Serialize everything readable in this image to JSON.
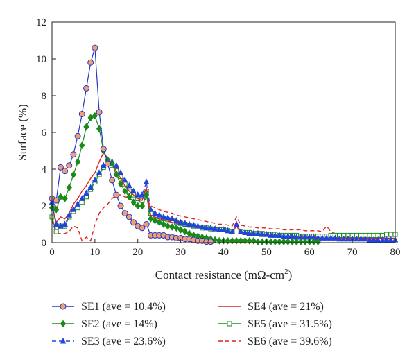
{
  "chart_data": {
    "type": "line",
    "xlabel": "Contact resistance (mΩ-cm",
    "xlabel_sup": "2",
    "xlabel_suffix": ")",
    "ylabel": "Surface (%)",
    "xlim": [
      0,
      80
    ],
    "ylim": [
      0,
      12
    ],
    "x_ticks": [
      0,
      10,
      20,
      30,
      40,
      50,
      60,
      70,
      80
    ],
    "y_ticks": [
      0,
      2,
      4,
      6,
      8,
      10,
      12
    ],
    "grid": false,
    "legend_position": "bottom",
    "series": [
      {
        "name": "SE1 (ave = 10.4%)",
        "color": "#2233cc",
        "marker": "circle",
        "marker_fill": "#f0a070",
        "dashed": false,
        "x": [
          0,
          1,
          2,
          3,
          4,
          5,
          6,
          7,
          8,
          9,
          10,
          11,
          12,
          13,
          14,
          15,
          16,
          17,
          18,
          19,
          20,
          21,
          22,
          23,
          24,
          25,
          26,
          27,
          28,
          29,
          30,
          31,
          32,
          33,
          34,
          35,
          36,
          37
        ],
        "y": [
          2.4,
          2.3,
          4.1,
          3.9,
          4.2,
          4.8,
          5.8,
          7.0,
          8.4,
          9.8,
          10.6,
          7.1,
          5.1,
          4.3,
          3.4,
          2.6,
          2.0,
          1.6,
          1.4,
          1.1,
          0.9,
          0.8,
          1.0,
          0.4,
          0.4,
          0.4,
          0.4,
          0.3,
          0.3,
          0.25,
          0.25,
          0.2,
          0.2,
          0.15,
          0.1,
          0.1,
          0.05,
          0.05
        ]
      },
      {
        "name": "SE2 (ave = 14%)",
        "color": "#1a8a1a",
        "marker": "diamond",
        "marker_fill": "#1a8a1a",
        "dashed": false,
        "x": [
          0,
          1,
          2,
          3,
          4,
          5,
          6,
          7,
          8,
          9,
          10,
          11,
          12,
          13,
          14,
          15,
          16,
          17,
          18,
          19,
          20,
          21,
          22,
          23,
          24,
          25,
          26,
          27,
          28,
          29,
          30,
          31,
          32,
          33,
          34,
          35,
          36,
          37,
          38,
          39,
          40,
          41,
          42,
          43,
          44,
          45,
          46,
          47,
          48,
          49,
          50,
          51,
          52,
          53,
          54,
          55,
          56,
          57,
          58,
          59,
          60,
          61,
          62
        ],
        "y": [
          1.9,
          1.8,
          2.5,
          2.4,
          3.0,
          3.7,
          4.4,
          5.3,
          6.3,
          6.8,
          6.9,
          6.2,
          5.0,
          4.5,
          4.3,
          3.7,
          3.2,
          2.8,
          2.5,
          2.2,
          2.0,
          2.0,
          2.6,
          1.3,
          1.2,
          1.1,
          1.0,
          0.9,
          0.85,
          0.8,
          0.7,
          0.6,
          0.5,
          0.4,
          0.35,
          0.3,
          0.25,
          0.2,
          0.15,
          0.1,
          0.1,
          0.1,
          0.1,
          0.1,
          0.1,
          0.1,
          0.1,
          0.1,
          0.05,
          0.05,
          0.05,
          0.05,
          0.05,
          0.05,
          0.05,
          0.05,
          0.05,
          0.05,
          0.05,
          0.05,
          0.05,
          0.05,
          0.05
        ]
      },
      {
        "name": "SE3 (ave = 23.6%)",
        "color": "#2244dd",
        "marker": "triangle",
        "marker_fill": "#2244dd",
        "dashed": true,
        "x": [
          0,
          1,
          2,
          3,
          4,
          5,
          6,
          7,
          8,
          9,
          10,
          11,
          12,
          13,
          14,
          15,
          16,
          17,
          18,
          19,
          20,
          21,
          22,
          23,
          24,
          25,
          26,
          27,
          28,
          29,
          30,
          31,
          32,
          33,
          34,
          35,
          36,
          37,
          38,
          39,
          40,
          41,
          42,
          43,
          44,
          45,
          46,
          47,
          48,
          49,
          50,
          51,
          52,
          53,
          54,
          55,
          56,
          57,
          58,
          59,
          60,
          61,
          62,
          63,
          64,
          65,
          66,
          67,
          68,
          69,
          70,
          71,
          72,
          73,
          74,
          75,
          76,
          77,
          78,
          79,
          80
        ],
        "y": [
          2.2,
          1.0,
          0.9,
          1.0,
          1.5,
          1.8,
          2.1,
          2.4,
          2.7,
          3.0,
          3.4,
          3.8,
          4.2,
          4.3,
          4.4,
          4.2,
          3.8,
          3.4,
          3.1,
          2.8,
          2.6,
          2.6,
          3.3,
          1.8,
          1.6,
          1.5,
          1.4,
          1.35,
          1.3,
          1.2,
          1.1,
          1.05,
          1.0,
          0.95,
          0.9,
          0.85,
          0.8,
          0.8,
          0.75,
          0.7,
          0.7,
          0.65,
          0.6,
          1.0,
          0.6,
          0.55,
          0.5,
          0.5,
          0.5,
          0.45,
          0.45,
          0.4,
          0.4,
          0.4,
          0.35,
          0.35,
          0.35,
          0.3,
          0.3,
          0.3,
          0.3,
          0.3,
          0.25,
          0.25,
          0.25,
          0.25,
          0.25,
          0.2,
          0.2,
          0.2,
          0.2,
          0.2,
          0.2,
          0.2,
          0.15,
          0.15,
          0.15,
          0.15,
          0.15,
          0.15,
          0.15
        ]
      },
      {
        "name": "SE4 (ave = 21%)",
        "color": "#dd2222",
        "marker": "none",
        "marker_fill": "none",
        "dashed": false,
        "x": [
          0,
          1,
          2,
          3,
          4,
          5,
          6,
          7,
          8,
          9,
          10,
          11,
          12,
          13,
          14,
          15,
          16,
          17,
          18,
          19,
          20,
          21,
          22,
          23,
          24,
          25,
          26,
          27,
          28,
          29,
          30,
          31,
          32,
          33,
          34,
          35,
          36,
          37,
          38,
          39,
          40,
          41,
          42,
          43,
          44,
          45,
          46,
          47,
          48,
          49,
          50,
          51,
          52,
          53,
          54,
          55,
          56,
          57,
          58,
          59,
          60,
          61,
          62,
          63,
          64,
          65,
          66,
          67,
          68,
          69,
          70,
          71,
          72,
          73,
          74,
          75,
          76,
          77,
          78,
          79,
          80
        ],
        "y": [
          2.0,
          1.1,
          1.4,
          1.3,
          1.6,
          2.1,
          2.4,
          2.8,
          3.1,
          3.5,
          3.8,
          4.4,
          4.9,
          4.6,
          4.3,
          3.9,
          3.5,
          3.1,
          2.8,
          2.6,
          2.4,
          2.3,
          3.0,
          1.5,
          1.4,
          1.3,
          1.25,
          1.2,
          1.1,
          1.05,
          1.0,
          0.95,
          0.9,
          0.85,
          0.8,
          0.8,
          0.75,
          0.7,
          0.7,
          0.65,
          0.6,
          0.6,
          0.55,
          0.9,
          0.55,
          0.5,
          0.5,
          0.45,
          0.45,
          0.45,
          0.4,
          0.4,
          0.4,
          0.35,
          0.35,
          0.35,
          0.35,
          0.3,
          0.3,
          0.3,
          0.3,
          0.3,
          0.3,
          0.25,
          0.25,
          0.25,
          0.25,
          0.25,
          0.25,
          0.25,
          0.25,
          0.25,
          0.25,
          0.25,
          0.25,
          0.25,
          0.25,
          0.25,
          0.25,
          0.25,
          0.25
        ]
      },
      {
        "name": "SE5 (ave = 31.5%)",
        "color": "#1a8a1a",
        "marker": "square",
        "marker_fill": "#ffffff",
        "dashed": false,
        "x": [
          0,
          1,
          2,
          3,
          4,
          5,
          6,
          7,
          8,
          9,
          10,
          11,
          12,
          13,
          14,
          15,
          16,
          17,
          18,
          19,
          20,
          21,
          22,
          23,
          24,
          25,
          26,
          27,
          28,
          29,
          30,
          31,
          32,
          33,
          34,
          35,
          36,
          37,
          38,
          39,
          40,
          41,
          42,
          43,
          44,
          45,
          46,
          47,
          48,
          49,
          50,
          51,
          52,
          53,
          54,
          55,
          56,
          57,
          58,
          59,
          60,
          61,
          62,
          63,
          64,
          65,
          66,
          67,
          68,
          69,
          70,
          71,
          72,
          73,
          74,
          75,
          76,
          77,
          78,
          79,
          80
        ],
        "y": [
          1.4,
          0.6,
          0.9,
          0.9,
          1.4,
          1.7,
          1.9,
          2.2,
          2.5,
          2.9,
          3.3,
          3.7,
          4.1,
          4.3,
          4.2,
          3.9,
          3.6,
          3.2,
          2.8,
          2.6,
          2.4,
          2.3,
          2.8,
          1.6,
          1.5,
          1.4,
          1.3,
          1.25,
          1.2,
          1.1,
          1.05,
          1.0,
          0.95,
          0.9,
          0.85,
          0.8,
          0.8,
          0.75,
          0.7,
          0.7,
          0.7,
          0.65,
          0.6,
          0.85,
          0.6,
          0.55,
          0.55,
          0.5,
          0.5,
          0.5,
          0.45,
          0.45,
          0.45,
          0.4,
          0.4,
          0.4,
          0.4,
          0.4,
          0.35,
          0.35,
          0.35,
          0.35,
          0.35,
          0.35,
          0.35,
          0.4,
          0.4,
          0.4,
          0.4,
          0.4,
          0.4,
          0.4,
          0.4,
          0.4,
          0.4,
          0.4,
          0.4,
          0.4,
          0.45,
          0.45,
          0.45
        ]
      },
      {
        "name": "SE6 (ave = 39.6%)",
        "color": "#dd2222",
        "marker": "none",
        "marker_fill": "none",
        "dashed": true,
        "x": [
          0,
          1,
          2,
          3,
          4,
          5,
          6,
          7,
          8,
          9,
          10,
          11,
          12,
          13,
          14,
          15,
          16,
          17,
          18,
          19,
          20,
          21,
          22,
          23,
          24,
          25,
          26,
          27,
          28,
          29,
          30,
          31,
          32,
          33,
          34,
          35,
          36,
          37,
          38,
          39,
          40,
          41,
          42,
          43,
          44,
          45,
          46,
          47,
          48,
          49,
          50,
          51,
          52,
          53,
          54,
          55,
          56,
          57,
          58,
          59,
          60,
          61,
          62,
          63,
          64,
          65,
          66,
          67,
          68,
          69,
          70,
          71,
          72,
          73,
          74,
          75,
          76,
          77,
          78,
          79,
          80
        ],
        "y": [
          1.2,
          0.5,
          0.5,
          0.5,
          0.6,
          0.9,
          0.8,
          0.1,
          0.3,
          0.1,
          1.0,
          1.6,
          1.9,
          2.1,
          2.4,
          2.6,
          2.6,
          2.5,
          2.4,
          2.3,
          2.3,
          2.2,
          2.4,
          2.0,
          1.9,
          1.8,
          1.7,
          1.65,
          1.6,
          1.5,
          1.45,
          1.4,
          1.35,
          1.3,
          1.25,
          1.2,
          1.15,
          1.1,
          1.05,
          1.0,
          1.0,
          0.95,
          0.9,
          1.4,
          0.95,
          0.9,
          0.85,
          0.85,
          0.8,
          0.8,
          0.8,
          0.75,
          0.75,
          0.75,
          0.7,
          0.7,
          0.7,
          0.7,
          0.7,
          0.65,
          0.65,
          0.65,
          0.65,
          0.6,
          0.9,
          0.6,
          0.5,
          0.5,
          0.5,
          0.5,
          0.5,
          0.5,
          0.45,
          0.45,
          0.45,
          0.45,
          0.45,
          0.45,
          0.45,
          0.45,
          0.45
        ]
      }
    ]
  }
}
